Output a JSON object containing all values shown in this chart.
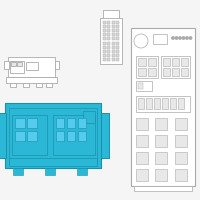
{
  "bg_color": "#f5f5f5",
  "outline_color": "#aaaaaa",
  "cyan_color": "#2bb8d6",
  "cyan_dark": "#1a90aa",
  "line_color": "#aaaaaa",
  "white": "#ffffff",
  "gray_fill": "#e8e8e8"
}
